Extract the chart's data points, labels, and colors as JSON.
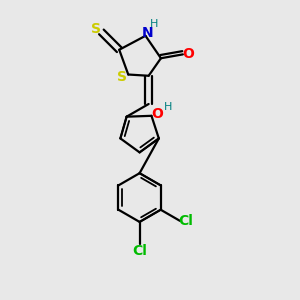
{
  "background_color": "#e8e8e8",
  "line_color": "#000000",
  "lw": 1.6,
  "lw_inner": 1.3,
  "colors": {
    "S": "#cccc00",
    "N": "#0000cc",
    "O": "#ff0000",
    "Cl": "#00bb00",
    "H": "#008080"
  }
}
